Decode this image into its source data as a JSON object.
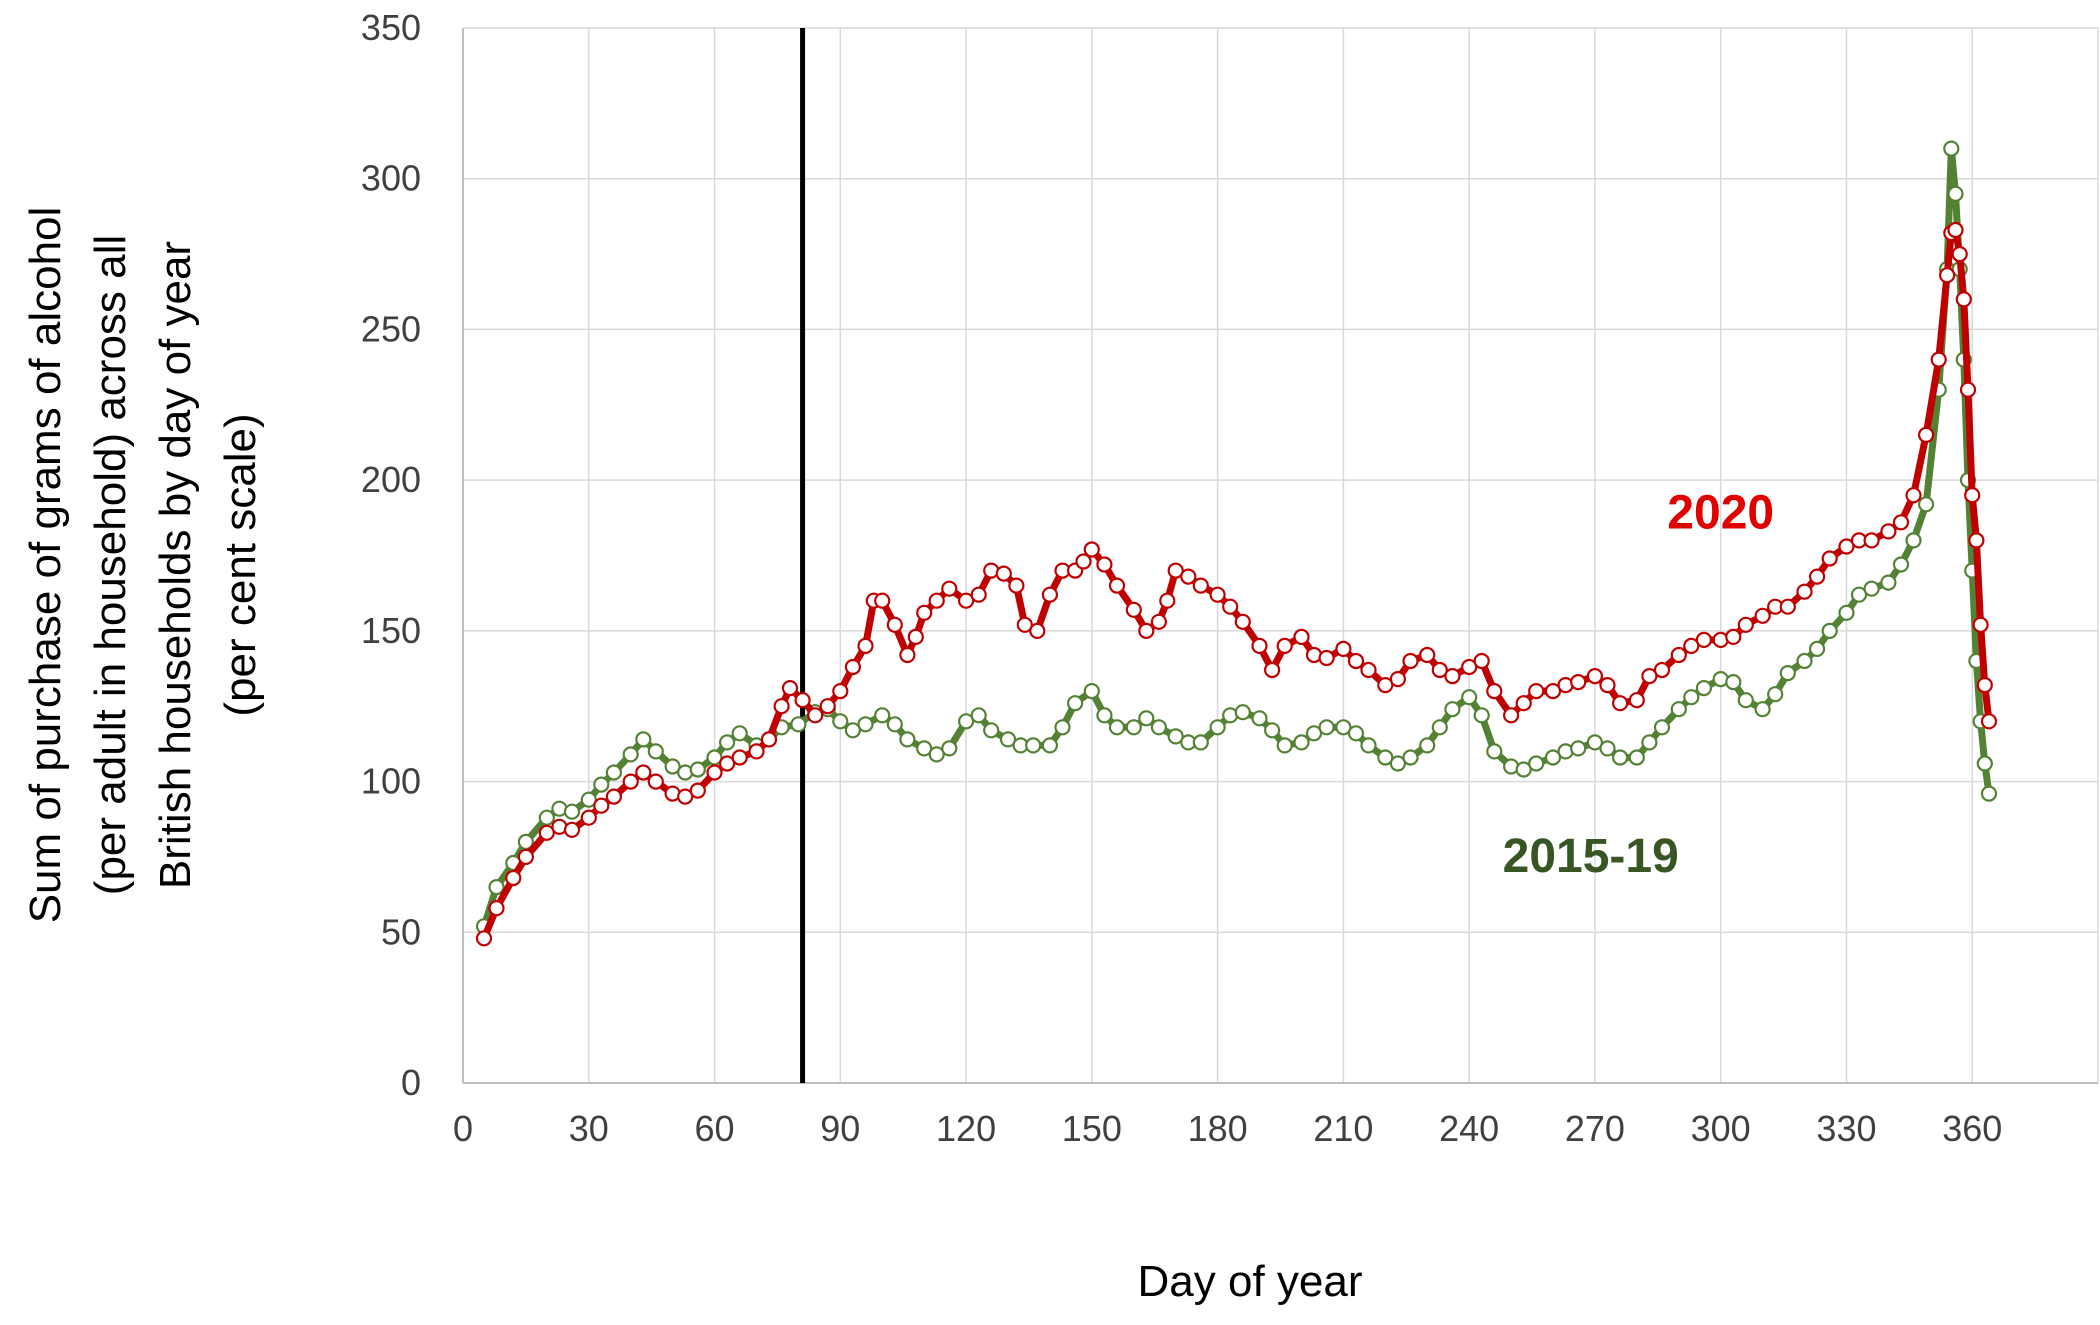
{
  "chart_data": {
    "type": "scatter",
    "xlabel": "Day of year",
    "ylabel_lines": [
      "Sum of purchase of grams of alcohol",
      "(per adult in household) across all",
      "British households by day of year",
      "(per cent scale)"
    ],
    "xlim": [
      0,
      390
    ],
    "ylim": [
      0,
      350
    ],
    "x_ticks": [
      0,
      30,
      60,
      90,
      120,
      150,
      180,
      210,
      240,
      270,
      300,
      330,
      360
    ],
    "y_ticks": [
      0,
      50,
      100,
      150,
      200,
      250,
      300,
      350
    ],
    "grid": true,
    "reference_line_x": 81,
    "series": [
      {
        "name": "2015-19",
        "color": "#548235",
        "label_color": "#375623",
        "marker": "hollow-circle",
        "points": [
          [
            5,
            52
          ],
          [
            8,
            65
          ],
          [
            12,
            73
          ],
          [
            15,
            80
          ],
          [
            20,
            88
          ],
          [
            23,
            91
          ],
          [
            26,
            90
          ],
          [
            30,
            94
          ],
          [
            33,
            99
          ],
          [
            36,
            103
          ],
          [
            40,
            109
          ],
          [
            43,
            114
          ],
          [
            46,
            110
          ],
          [
            50,
            105
          ],
          [
            53,
            103
          ],
          [
            56,
            104
          ],
          [
            60,
            108
          ],
          [
            63,
            113
          ],
          [
            66,
            116
          ],
          [
            70,
            112
          ],
          [
            73,
            114
          ],
          [
            76,
            118
          ],
          [
            80,
            119
          ],
          [
            84,
            123
          ],
          [
            87,
            124
          ],
          [
            90,
            120
          ],
          [
            93,
            117
          ],
          [
            96,
            119
          ],
          [
            100,
            122
          ],
          [
            103,
            119
          ],
          [
            106,
            114
          ],
          [
            110,
            111
          ],
          [
            113,
            109
          ],
          [
            116,
            111
          ],
          [
            120,
            120
          ],
          [
            123,
            122
          ],
          [
            126,
            117
          ],
          [
            130,
            114
          ],
          [
            133,
            112
          ],
          [
            136,
            112
          ],
          [
            140,
            112
          ],
          [
            143,
            118
          ],
          [
            146,
            126
          ],
          [
            150,
            130
          ],
          [
            153,
            122
          ],
          [
            156,
            118
          ],
          [
            160,
            118
          ],
          [
            163,
            121
          ],
          [
            166,
            118
          ],
          [
            170,
            115
          ],
          [
            173,
            113
          ],
          [
            176,
            113
          ],
          [
            180,
            118
          ],
          [
            183,
            122
          ],
          [
            186,
            123
          ],
          [
            190,
            121
          ],
          [
            193,
            117
          ],
          [
            196,
            112
          ],
          [
            200,
            113
          ],
          [
            203,
            116
          ],
          [
            206,
            118
          ],
          [
            210,
            118
          ],
          [
            213,
            116
          ],
          [
            216,
            112
          ],
          [
            220,
            108
          ],
          [
            223,
            106
          ],
          [
            226,
            108
          ],
          [
            230,
            112
          ],
          [
            233,
            118
          ],
          [
            236,
            124
          ],
          [
            240,
            128
          ],
          [
            243,
            122
          ],
          [
            246,
            110
          ],
          [
            250,
            105
          ],
          [
            253,
            104
          ],
          [
            256,
            106
          ],
          [
            260,
            108
          ],
          [
            263,
            110
          ],
          [
            266,
            111
          ],
          [
            270,
            113
          ],
          [
            273,
            111
          ],
          [
            276,
            108
          ],
          [
            280,
            108
          ],
          [
            283,
            113
          ],
          [
            286,
            118
          ],
          [
            290,
            124
          ],
          [
            293,
            128
          ],
          [
            296,
            131
          ],
          [
            300,
            134
          ],
          [
            303,
            133
          ],
          [
            306,
            127
          ],
          [
            310,
            124
          ],
          [
            313,
            129
          ],
          [
            316,
            136
          ],
          [
            320,
            140
          ],
          [
            323,
            144
          ],
          [
            326,
            150
          ],
          [
            330,
            156
          ],
          [
            333,
            162
          ],
          [
            336,
            164
          ],
          [
            340,
            166
          ],
          [
            343,
            172
          ],
          [
            346,
            180
          ],
          [
            349,
            192
          ],
          [
            352,
            230
          ],
          [
            354,
            270
          ],
          [
            355,
            310
          ],
          [
            356,
            295
          ],
          [
            357,
            270
          ],
          [
            358,
            240
          ],
          [
            359,
            200
          ],
          [
            360,
            170
          ],
          [
            361,
            140
          ],
          [
            362,
            120
          ],
          [
            363,
            106
          ],
          [
            364,
            96
          ]
        ]
      },
      {
        "name": "2020",
        "color": "#c00000",
        "label_color": "#e00000",
        "marker": "hollow-circle",
        "points": [
          [
            5,
            48
          ],
          [
            8,
            58
          ],
          [
            12,
            68
          ],
          [
            15,
            75
          ],
          [
            20,
            83
          ],
          [
            23,
            85
          ],
          [
            26,
            84
          ],
          [
            30,
            88
          ],
          [
            33,
            92
          ],
          [
            36,
            95
          ],
          [
            40,
            100
          ],
          [
            43,
            103
          ],
          [
            46,
            100
          ],
          [
            50,
            96
          ],
          [
            53,
            95
          ],
          [
            56,
            97
          ],
          [
            60,
            103
          ],
          [
            63,
            106
          ],
          [
            66,
            108
          ],
          [
            70,
            110
          ],
          [
            73,
            114
          ],
          [
            76,
            125
          ],
          [
            78,
            131
          ],
          [
            81,
            127
          ],
          [
            84,
            122
          ],
          [
            87,
            125
          ],
          [
            90,
            130
          ],
          [
            93,
            138
          ],
          [
            96,
            145
          ],
          [
            98,
            160
          ],
          [
            100,
            160
          ],
          [
            103,
            152
          ],
          [
            106,
            142
          ],
          [
            108,
            148
          ],
          [
            110,
            156
          ],
          [
            113,
            160
          ],
          [
            116,
            164
          ],
          [
            120,
            160
          ],
          [
            123,
            162
          ],
          [
            126,
            170
          ],
          [
            129,
            169
          ],
          [
            132,
            165
          ],
          [
            134,
            152
          ],
          [
            137,
            150
          ],
          [
            140,
            162
          ],
          [
            143,
            170
          ],
          [
            146,
            170
          ],
          [
            148,
            173
          ],
          [
            150,
            177
          ],
          [
            153,
            172
          ],
          [
            156,
            165
          ],
          [
            160,
            157
          ],
          [
            163,
            150
          ],
          [
            166,
            153
          ],
          [
            168,
            160
          ],
          [
            170,
            170
          ],
          [
            173,
            168
          ],
          [
            176,
            165
          ],
          [
            180,
            162
          ],
          [
            183,
            158
          ],
          [
            186,
            153
          ],
          [
            190,
            145
          ],
          [
            193,
            137
          ],
          [
            196,
            145
          ],
          [
            200,
            148
          ],
          [
            203,
            142
          ],
          [
            206,
            141
          ],
          [
            210,
            144
          ],
          [
            213,
            140
          ],
          [
            216,
            137
          ],
          [
            220,
            132
          ],
          [
            223,
            134
          ],
          [
            226,
            140
          ],
          [
            230,
            142
          ],
          [
            233,
            137
          ],
          [
            236,
            135
          ],
          [
            240,
            138
          ],
          [
            243,
            140
          ],
          [
            246,
            130
          ],
          [
            250,
            122
          ],
          [
            253,
            126
          ],
          [
            256,
            130
          ],
          [
            260,
            130
          ],
          [
            263,
            132
          ],
          [
            266,
            133
          ],
          [
            270,
            135
          ],
          [
            273,
            132
          ],
          [
            276,
            126
          ],
          [
            280,
            127
          ],
          [
            283,
            135
          ],
          [
            286,
            137
          ],
          [
            290,
            142
          ],
          [
            293,
            145
          ],
          [
            296,
            147
          ],
          [
            300,
            147
          ],
          [
            303,
            148
          ],
          [
            306,
            152
          ],
          [
            310,
            155
          ],
          [
            313,
            158
          ],
          [
            316,
            158
          ],
          [
            320,
            163
          ],
          [
            323,
            168
          ],
          [
            326,
            174
          ],
          [
            330,
            178
          ],
          [
            333,
            180
          ],
          [
            336,
            180
          ],
          [
            340,
            183
          ],
          [
            343,
            186
          ],
          [
            346,
            195
          ],
          [
            349,
            215
          ],
          [
            352,
            240
          ],
          [
            354,
            268
          ],
          [
            355,
            282
          ],
          [
            356,
            283
          ],
          [
            357,
            275
          ],
          [
            358,
            260
          ],
          [
            359,
            230
          ],
          [
            360,
            195
          ],
          [
            361,
            180
          ],
          [
            362,
            152
          ],
          [
            363,
            132
          ],
          [
            364,
            120
          ]
        ]
      }
    ],
    "annotations": [
      {
        "text": "2020",
        "color": "#e00000",
        "x": 300,
        "y": 184
      },
      {
        "text": "2015-19",
        "color": "#375623",
        "x": 269,
        "y": 70
      }
    ]
  }
}
